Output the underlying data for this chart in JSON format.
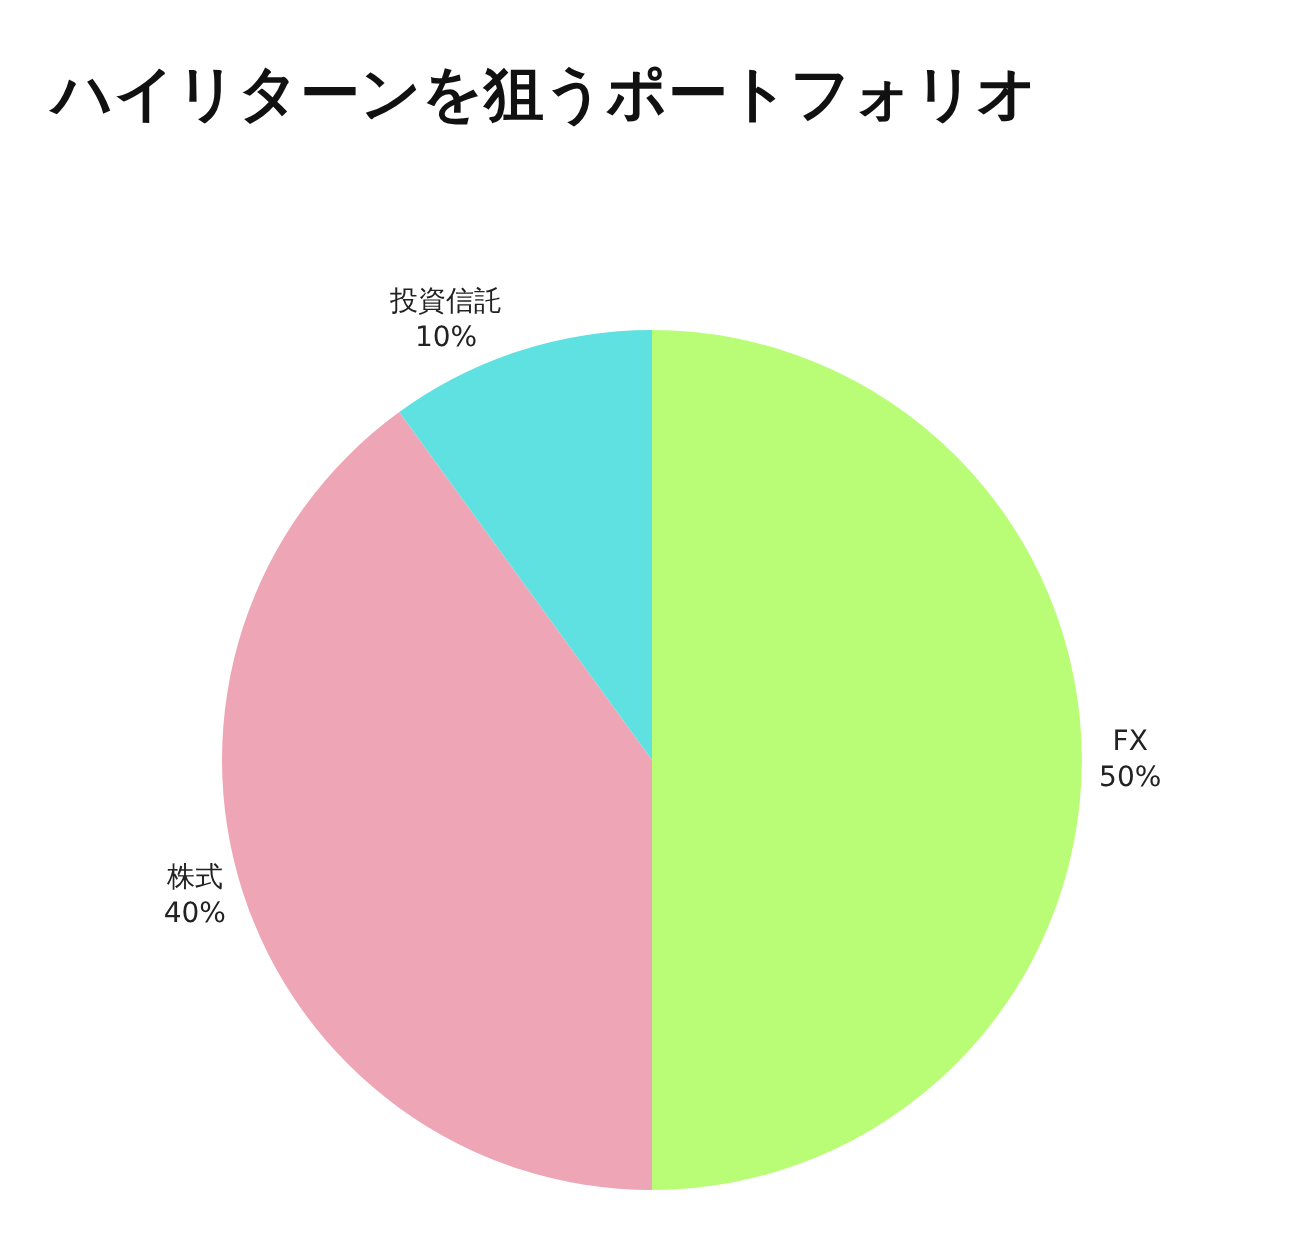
{
  "chart_data": {
    "type": "pie",
    "title": "ハイリターンを狙うポートフォリオ",
    "categories": [
      "FX",
      "株式",
      "投資信託"
    ],
    "values": [
      50,
      40,
      10
    ],
    "value_labels": [
      "50%",
      "40%",
      "10%"
    ],
    "colors": [
      "#b9fd77",
      "#eea5b6",
      "#5fe0e1"
    ],
    "legend": false
  }
}
